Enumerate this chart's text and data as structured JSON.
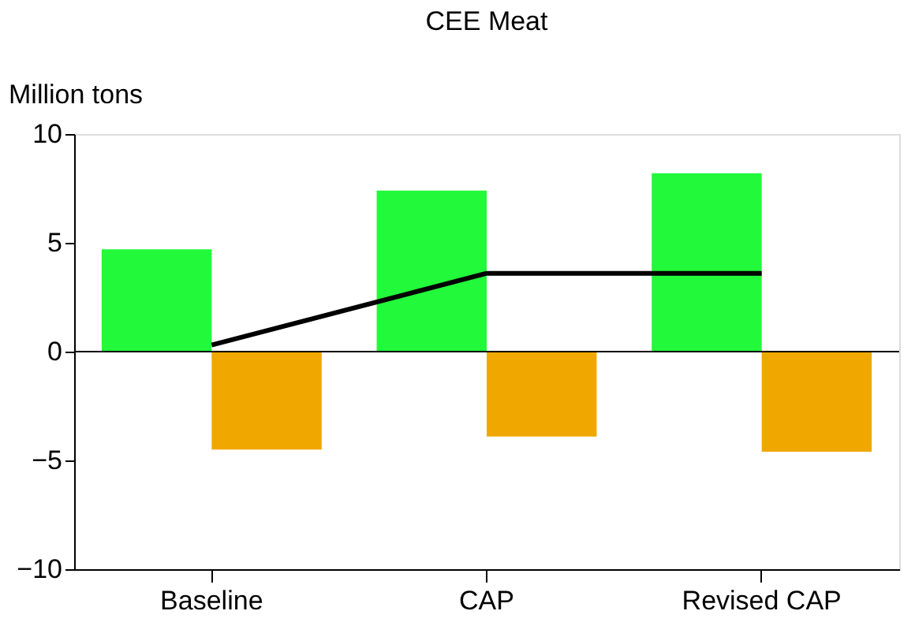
{
  "chart_data": {
    "type": "bar",
    "title": "CEE Meat",
    "ylabel": "Million tons",
    "categories": [
      "Baseline",
      "CAP",
      "Revised CAP"
    ],
    "series": [
      {
        "color": "#22f93a",
        "values": [
          4.7,
          7.4,
          8.2
        ]
      },
      {
        "color": "#f0a800",
        "values": [
          -4.5,
          -3.9,
          -4.6
        ]
      },
      {
        "type": "line",
        "color": "#000000",
        "values": [
          0.3,
          3.6,
          3.6
        ],
        "marker": "none",
        "line_style": "solid"
      }
    ],
    "ylim": [
      -10,
      10
    ],
    "yticks": [
      -10,
      -5,
      0,
      5,
      10
    ],
    "grid": false,
    "legend": false,
    "ref_lines": [
      {
        "axis": "y",
        "value": 0,
        "color": "#000000"
      }
    ]
  }
}
